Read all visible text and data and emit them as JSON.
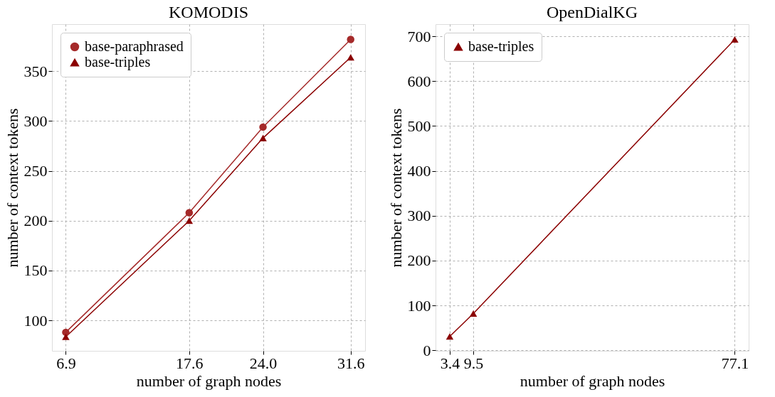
{
  "chart_data": [
    {
      "type": "line",
      "title": "KOMODIS",
      "xlabel": "number of graph nodes",
      "ylabel": "number of context tokens",
      "x": [
        6.9,
        17.6,
        24.0,
        31.6
      ],
      "xlim": [
        5.7,
        32.85
      ],
      "xticks": [
        6.9,
        17.6,
        {
          "value": 24.0,
          "label": "24.0"
        },
        31.6
      ],
      "ylim": [
        69.4,
        397.3
      ],
      "yticks": [
        100,
        150,
        200,
        250,
        300,
        350
      ],
      "grid": true,
      "legend": "top left",
      "line_style": "solid",
      "series": [
        {
          "name": "base-paraphrased",
          "color": "#a52a2a",
          "marker": "circle",
          "values": [
            88,
            208,
            294,
            382
          ]
        },
        {
          "name": "base-triples",
          "color": "#8b0000",
          "marker": "triangle",
          "values": [
            83.5,
            200,
            283,
            364
          ]
        }
      ]
    },
    {
      "type": "line",
      "title": "OpenDialKG",
      "xlabel": "number of graph nodes",
      "ylabel": "number of context tokens",
      "x": [
        3.4,
        9.5,
        77.1
      ],
      "xlim": [
        -0.27,
        80.7
      ],
      "xticks": [
        3.4,
        9.5,
        77.1
      ],
      "ylim": [
        -1,
        727
      ],
      "yticks": [
        0,
        100,
        200,
        300,
        400,
        500,
        600,
        700
      ],
      "grid": true,
      "legend": "top left",
      "line_style": "solid",
      "series": [
        {
          "name": "base-triples",
          "color": "#8b0000",
          "marker": "triangle",
          "values": [
            31,
            82,
            693
          ]
        }
      ]
    }
  ]
}
